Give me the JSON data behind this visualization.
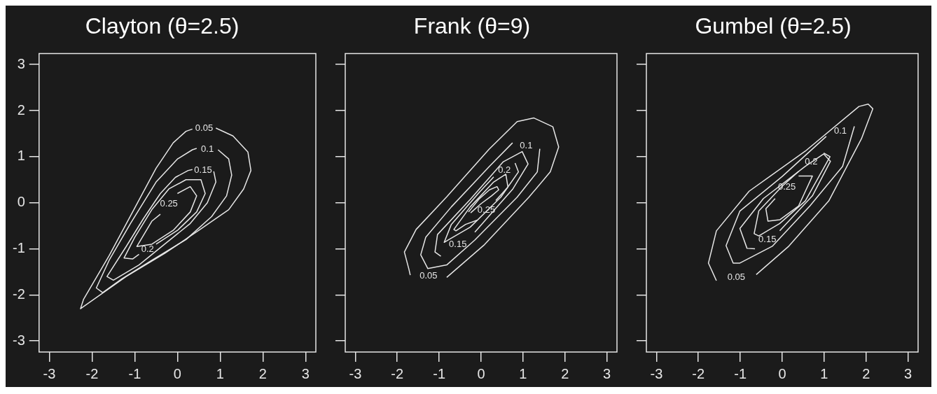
{
  "chart_data": [
    {
      "type": "line",
      "title": "Clayton (θ=2.5)",
      "xlim": [
        -3.24,
        3.24
      ],
      "ylim": [
        -3.24,
        3.24
      ],
      "xticks": [
        -3,
        -2,
        -1,
        0,
        1,
        2,
        3
      ],
      "yticks": [
        -3,
        -2,
        -1,
        0,
        1,
        2,
        3
      ],
      "marker": "none",
      "series": [
        {
          "name": "0.05",
          "color": "#e6e6e6",
          "x": [
            0.9,
            1.3,
            1.65,
            1.72,
            1.55,
            1.2,
            0.5,
            -0.3,
            -1.2,
            -2.27,
            -2.2,
            -1.6,
            -1.05,
            -0.5,
            -0.1,
            0.2,
            0.35
          ],
          "values": [
            1.62,
            1.45,
            1.1,
            0.7,
            0.3,
            -0.15,
            -0.6,
            -1.1,
            -1.6,
            -2.3,
            -2.1,
            -1.15,
            -0.2,
            0.75,
            1.3,
            1.55,
            1.6
          ]
        },
        {
          "name": "0.1",
          "color": "#e6e6e6",
          "x": [
            0.95,
            1.2,
            1.27,
            1.15,
            0.8,
            0.2,
            -0.6,
            -1.3,
            -1.75,
            -1.9,
            -1.6,
            -1.1,
            -0.5,
            0.0,
            0.35,
            0.45
          ],
          "values": [
            1.15,
            0.95,
            0.6,
            0.15,
            -0.3,
            -0.8,
            -1.25,
            -1.65,
            -1.95,
            -1.85,
            -1.25,
            -0.45,
            0.45,
            0.95,
            1.15,
            1.18
          ]
        },
        {
          "name": "0.15",
          "color": "#e6e6e6",
          "x": [
            0.85,
            0.9,
            0.7,
            0.3,
            -0.3,
            -0.9,
            -1.5,
            -1.65,
            -1.2,
            -0.8,
            -0.4,
            -0.05,
            0.25,
            0.35
          ],
          "values": [
            0.68,
            0.45,
            0.0,
            -0.45,
            -0.9,
            -1.35,
            -1.68,
            -1.6,
            -0.95,
            -0.35,
            0.2,
            0.55,
            0.7,
            0.72
          ]
        },
        {
          "name": "0.2",
          "color": "#e6e6e6",
          "x": [
            -0.5,
            0.0,
            0.45,
            0.65,
            0.55,
            0.2,
            -0.2,
            -0.6,
            -1.0,
            -1.25,
            -1.05,
            -0.9
          ],
          "values": [
            -0.9,
            -0.6,
            -0.2,
            0.2,
            0.5,
            0.5,
            0.3,
            -0.15,
            -0.75,
            -1.2,
            -1.22,
            -1.12
          ]
        },
        {
          "name": "0.25",
          "color": "#e6e6e6",
          "x": [
            0.0,
            0.3,
            0.45,
            0.3,
            -0.1,
            -0.6,
            -0.95,
            -0.6,
            -0.4
          ],
          "values": [
            0.2,
            0.35,
            0.15,
            -0.2,
            -0.6,
            -0.9,
            -0.95,
            -0.4,
            -0.25
          ]
        }
      ]
    },
    {
      "type": "line",
      "title": "Frank (θ=9)",
      "xlim": [
        -3.24,
        3.24
      ],
      "ylim": [
        -3.24,
        3.24
      ],
      "xticks": [
        -3,
        -2,
        -1,
        0,
        1,
        2,
        3
      ],
      "yticks": [
        {
          "value": -3,
          "label": null
        },
        {
          "value": -2,
          "label": null
        },
        {
          "value": -1,
          "label": null
        },
        {
          "value": 0,
          "label": null
        },
        {
          "value": 1,
          "label": null
        },
        {
          "value": 2,
          "label": null
        },
        {
          "value": 3,
          "label": null
        }
      ],
      "tick_labels": "x",
      "marker": "none",
      "series": [
        {
          "name": "0.05",
          "color": "#e6e6e6",
          "x": [
            -0.82,
            0.08,
            1.14,
            1.65,
            1.85,
            1.71,
            1.26,
            0.86,
            0.19,
            -0.82,
            -1.55,
            -1.83,
            -1.72,
            -1.69
          ],
          "values": [
            -1.62,
            -0.91,
            0.12,
            0.67,
            1.21,
            1.65,
            1.84,
            1.76,
            1.16,
            0.13,
            -0.58,
            -1.07,
            -1.45,
            -1.57
          ]
        },
        {
          "name": "0.1",
          "color": "#e6e6e6",
          "x": [
            1.4,
            1.34,
            0.86,
            -0.15,
            -0.82,
            -1.27,
            -1.44,
            -1.32,
            -0.71,
            0.19,
            0.75
          ],
          "values": [
            1.17,
            0.67,
            0.12,
            -0.81,
            -1.35,
            -1.43,
            -1.13,
            -0.75,
            -0.09,
            0.78,
            1.3
          ]
        },
        {
          "name": "0.15",
          "color": "#e6e6e6",
          "x": [
            -0.15,
            0.75,
            1.12,
            0.98,
            0.53,
            -0.26,
            -1.04,
            -1.1,
            -0.96
          ],
          "values": [
            -0.64,
            0.29,
            0.84,
            1.11,
            0.89,
            0.07,
            -0.69,
            -1.07,
            -1.16
          ]
        },
        {
          "name": "0.2",
          "color": "#e6e6e6",
          "x": [
            0.81,
            0.89,
            0.47,
            -0.26,
            -0.77,
            -0.88,
            -0.71,
            -0.03,
            0.3
          ],
          "values": [
            0.86,
            0.67,
            0.12,
            -0.53,
            -0.8,
            -0.86,
            -0.47,
            0.24,
            0.56
          ]
        },
        {
          "name": "0.25",
          "color": "#e6e6e6",
          "x": [
            0.35,
            0.64,
            0.59,
            0.3,
            -0.26,
            -0.65,
            -0.6,
            -0.37,
            -0.1
          ],
          "values": [
            0.05,
            0.34,
            0.62,
            0.45,
            -0.09,
            -0.58,
            -0.61,
            -0.47,
            -0.38
          ]
        },
        {
          "color": "#e6e6e6",
          "x": [
            -0.3,
            -0.05,
            0.2,
            0.38,
            0.42,
            0.25,
            0.0,
            -0.25
          ],
          "values": [
            -0.2,
            0.08,
            0.28,
            0.35,
            0.28,
            0.15,
            -0.02,
            -0.22
          ]
        }
      ]
    },
    {
      "type": "line",
      "title": "Gumbel (θ=2.5)",
      "xlim": [
        -3.24,
        3.24
      ],
      "ylim": [
        -3.24,
        3.24
      ],
      "xticks": [
        -3,
        -2,
        -1,
        0,
        1,
        2,
        3
      ],
      "yticks": [
        {
          "value": -3,
          "label": null
        },
        {
          "value": -2,
          "label": null
        },
        {
          "value": -1,
          "label": null
        },
        {
          "value": 0,
          "label": null
        },
        {
          "value": 1,
          "label": null
        },
        {
          "value": 2,
          "label": null
        },
        {
          "value": 3,
          "label": null
        }
      ],
      "tick_labels": "x",
      "marker": "none",
      "series": [
        {
          "name": "0.05",
          "color": "#e6e6e6",
          "x": [
            -0.62,
            0.16,
            1.11,
            1.89,
            2.16,
            2.05,
            1.83,
            0.55,
            -0.79,
            -1.57,
            -1.76,
            -1.57
          ],
          "values": [
            -1.56,
            -0.94,
            0.04,
            1.39,
            2.04,
            2.14,
            2.09,
            1.12,
            0.25,
            -0.61,
            -1.31,
            -1.69
          ]
        },
        {
          "name": "0.1",
          "color": "#e6e6e6",
          "x": [
            1.72,
            1.44,
            0.66,
            -0.23,
            -1.01,
            -1.17,
            -1.34,
            -1.01,
            0.0,
            1.05
          ],
          "values": [
            1.66,
            0.79,
            -0.07,
            -0.94,
            -1.31,
            -1.31,
            -0.93,
            -0.18,
            0.57,
            1.44
          ]
        },
        {
          "name": "0.15",
          "color": "#e6e6e6",
          "x": [
            -0.06,
            0.72,
            1.15,
            0.99,
            0.55,
            -0.45,
            -1.01,
            -0.84,
            -0.65
          ],
          "values": [
            -0.61,
            0.15,
            0.9,
            1.06,
            0.79,
            0.09,
            -0.56,
            -0.99,
            -1.0
          ]
        },
        {
          "name": "0.2",
          "color": "#e6e6e6",
          "x": [
            0.99,
            1.14,
            0.55,
            -0.06,
            -0.56,
            -0.67,
            -0.56,
            0.0,
            0.39
          ],
          "values": [
            1.08,
            1.0,
            0.04,
            -0.45,
            -0.72,
            -0.67,
            -0.18,
            0.36,
            0.68
          ]
        },
        {
          "name": "0.25",
          "color": "#e6e6e6",
          "x": [
            0.39,
            0.72,
            0.39,
            -0.06,
            -0.34,
            -0.39,
            -0.17
          ],
          "values": [
            0.58,
            0.58,
            -0.07,
            -0.37,
            -0.4,
            -0.13,
            0.09
          ]
        }
      ]
    }
  ]
}
